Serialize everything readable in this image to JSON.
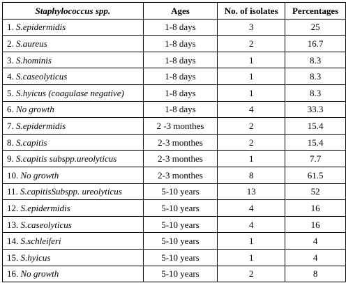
{
  "table": {
    "headers": [
      "Staphylococcus spp.",
      "Ages",
      "No. of isolates",
      "Percentages"
    ],
    "rows": [
      {
        "num": "1.",
        "species": "S.epidermidis",
        "age": "1-8 days",
        "isolates": "3",
        "percent": "25"
      },
      {
        "num": "2.",
        "species": "S.aureus",
        "age": "1-8 days",
        "isolates": "2",
        "percent": "16.7"
      },
      {
        "num": "3.",
        "species": "S.hominis",
        "age": "1-8 days",
        "isolates": "1",
        "percent": "8.3"
      },
      {
        "num": "4.",
        "species": "S.caseolyticus",
        "age": "1-8 days",
        "isolates": "1",
        "percent": "8.3"
      },
      {
        "num": "5.",
        "species": "S.hyicus (coagulase negative)",
        "age": "1-8 days",
        "isolates": "1",
        "percent": "8.3"
      },
      {
        "num": "6.",
        "species": "No growth",
        "age": "1-8 days",
        "isolates": "4",
        "percent": "33.3"
      },
      {
        "num": "7.",
        "species": "S.epidermidis",
        "age": "2 -3 monthes",
        "isolates": "2",
        "percent": "15.4"
      },
      {
        "num": "8.",
        "species": "S.capitis",
        "age": "2-3 monthes",
        "isolates": "2",
        "percent": "15.4"
      },
      {
        "num": "9.",
        "species": "S.capitis subspp.ureolyticus",
        "age": "2-3 monthes",
        "isolates": "1",
        "percent": "7.7"
      },
      {
        "num": "10.",
        "species": "No growth",
        "age": "2-3 monthes",
        "isolates": "8",
        "percent": "61.5"
      },
      {
        "num": "11.",
        "species": "S.capitisSubspp. ureolyticus",
        "age": "5-10 years",
        "isolates": "13",
        "percent": "52"
      },
      {
        "num": "12.",
        "species": "S.epidermidis",
        "age": "5-10 years",
        "isolates": "4",
        "percent": "16"
      },
      {
        "num": "13.",
        "species": "S.caseolyticus",
        "age": "5-10 years",
        "isolates": "4",
        "percent": "16"
      },
      {
        "num": "14.",
        "species": "S.schleiferi",
        "age": "5-10 years",
        "isolates": "1",
        "percent": "4"
      },
      {
        "num": "15.",
        "species": "S.hyicus",
        "age": "5-10 years",
        "isolates": "1",
        "percent": "4"
      },
      {
        "num": "16.",
        "species": "No growth",
        "age": "5-10 years",
        "isolates": "2",
        "percent": "8"
      }
    ]
  }
}
